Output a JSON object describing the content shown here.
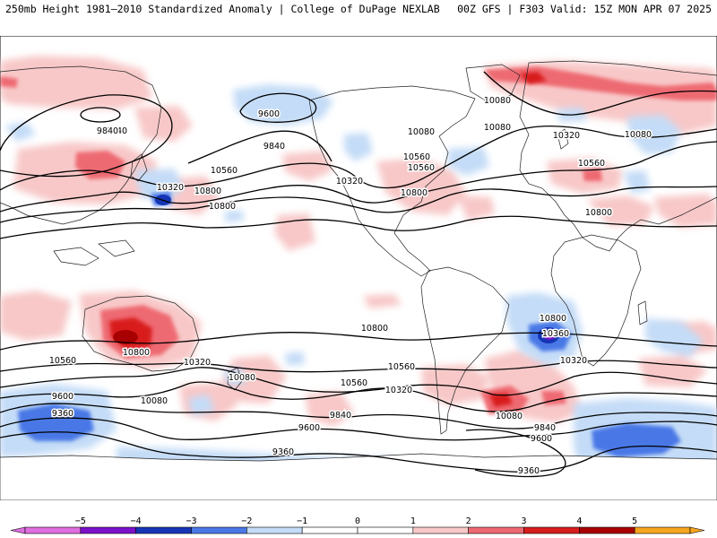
{
  "header": {
    "left_title": "250mb Height 1981–2010 Standardized Anomaly | College of DuPage NEXLAB",
    "right_title": "00Z GFS | F303 Valid: 15Z MON APR 07 2025"
  },
  "colors": {
    "neg5": "#e06ee0",
    "neg4": "#7a10c8",
    "neg3": "#1535b5",
    "neg2": "#4a78e6",
    "neg1": "#c4dcf7",
    "zero": "#ffffff",
    "pos1": "#f8c8c8",
    "pos2": "#ee6a72",
    "pos3": "#d81c1c",
    "pos4": "#a80000",
    "pos5": "#f7a520",
    "contour": "#000000",
    "coast": "#222222"
  },
  "contour_labels": [
    {
      "text": "9600"
    },
    {
      "text": "9840"
    },
    {
      "text": "9840"
    },
    {
      "text": "10080"
    },
    {
      "text": "10080"
    },
    {
      "text": "10560"
    },
    {
      "text": "10560"
    },
    {
      "text": "10320"
    },
    {
      "text": "10800"
    },
    {
      "text": "10800"
    },
    {
      "text": "10320"
    },
    {
      "text": "10080"
    },
    {
      "text": "10560"
    },
    {
      "text": "10800"
    },
    {
      "text": "9840"
    },
    {
      "text": "9840"
    },
    {
      "text": "10320"
    },
    {
      "text": "10080"
    },
    {
      "text": "10560"
    },
    {
      "text": "10800"
    },
    {
      "text": "10800"
    },
    {
      "text": "10360"
    },
    {
      "text": "10800"
    },
    {
      "text": "10800"
    },
    {
      "text": "10560"
    },
    {
      "text": "10320"
    },
    {
      "text": "10560"
    },
    {
      "text": "10080"
    },
    {
      "text": "10320"
    },
    {
      "text": "10560"
    },
    {
      "text": "10320"
    },
    {
      "text": "9600"
    },
    {
      "text": "9360"
    },
    {
      "text": "10080"
    },
    {
      "text": "9840"
    },
    {
      "text": "9600"
    },
    {
      "text": "10080"
    },
    {
      "text": "9840"
    },
    {
      "text": "9600"
    },
    {
      "text": "9360"
    },
    {
      "text": "9360"
    }
  ],
  "colorbar": {
    "ticks": [
      "−5",
      "−4",
      "−3",
      "−2",
      "−1",
      "0",
      "1",
      "2",
      "3",
      "4",
      "5"
    ]
  }
}
